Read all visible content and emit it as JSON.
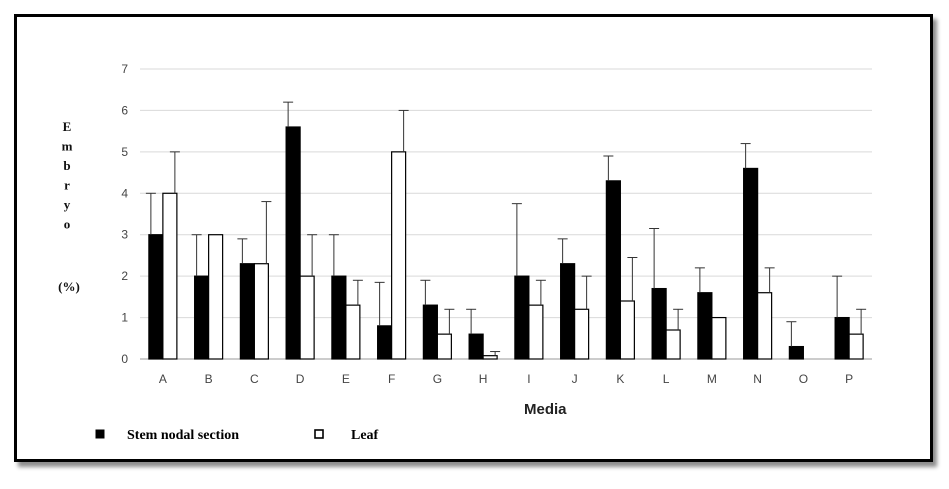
{
  "chart_data": {
    "type": "bar",
    "xlabel": "Media",
    "ylabel_letters": [
      "E",
      "m",
      "b",
      "r",
      "y",
      "o"
    ],
    "ylabel_unit": "(%)",
    "ylim": [
      0,
      7
    ],
    "yticks": [
      "0",
      "1",
      "2",
      "3",
      "4",
      "5",
      "6",
      "7"
    ],
    "grid": true,
    "legend_position": "bottom-left",
    "categories": [
      "A",
      "B",
      "C",
      "D",
      "E",
      "F",
      "G",
      "H",
      "I",
      "J",
      "K",
      "L",
      "M",
      "N",
      "O",
      "P"
    ],
    "series": [
      {
        "name": "Stem nodal section",
        "color": "#000000",
        "values": [
          3.0,
          2.0,
          2.3,
          5.6,
          2.0,
          0.8,
          1.3,
          0.6,
          2.0,
          2.3,
          4.3,
          1.7,
          1.6,
          4.6,
          0.3,
          1.0
        ],
        "errors": [
          1.0,
          1.0,
          0.6,
          0.6,
          1.0,
          1.05,
          0.6,
          0.6,
          1.75,
          0.6,
          0.6,
          1.45,
          0.6,
          0.6,
          0.6,
          1.0
        ]
      },
      {
        "name": "Leaf",
        "color": "#ffffff",
        "values": [
          4.0,
          3.0,
          2.3,
          2.0,
          1.3,
          5.0,
          0.6,
          0.08,
          1.3,
          1.2,
          1.4,
          0.7,
          1.0,
          1.6,
          0.0,
          0.6
        ],
        "errors": [
          1.0,
          0.0,
          1.5,
          1.0,
          0.6,
          1.0,
          0.6,
          0.1,
          0.6,
          0.8,
          1.05,
          0.5,
          0.0,
          0.6,
          0.0,
          0.6
        ]
      }
    ]
  }
}
